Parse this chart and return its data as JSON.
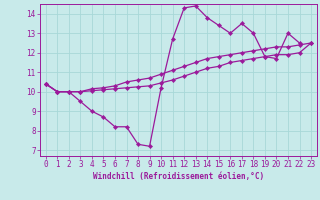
{
  "xlabel": "Windchill (Refroidissement éolien,°C)",
  "bg_color": "#c8eaea",
  "line_color": "#9b1a9b",
  "grid_color": "#a8d8d8",
  "xlim": [
    -0.5,
    23.5
  ],
  "ylim": [
    6.7,
    14.5
  ],
  "xticks": [
    0,
    1,
    2,
    3,
    4,
    5,
    6,
    7,
    8,
    9,
    10,
    11,
    12,
    13,
    14,
    15,
    16,
    17,
    18,
    19,
    20,
    21,
    22,
    23
  ],
  "yticks": [
    7,
    8,
    9,
    10,
    11,
    12,
    13,
    14
  ],
  "series": [
    [
      10.4,
      10.0,
      10.0,
      9.5,
      9.0,
      8.7,
      8.2,
      8.2,
      7.3,
      7.2,
      10.2,
      12.7,
      14.3,
      14.4,
      13.8,
      13.4,
      13.0,
      13.5,
      13.0,
      11.8,
      11.7,
      13.0,
      12.5,
      null
    ],
    [
      10.4,
      10.0,
      10.0,
      10.0,
      10.15,
      10.2,
      10.3,
      10.5,
      10.6,
      10.7,
      10.9,
      11.1,
      11.3,
      11.5,
      11.7,
      11.8,
      11.9,
      12.0,
      12.1,
      12.2,
      12.3,
      12.3,
      12.4,
      12.5
    ],
    [
      10.4,
      10.0,
      10.0,
      10.0,
      10.05,
      10.1,
      10.15,
      10.2,
      10.25,
      10.3,
      10.45,
      10.6,
      10.8,
      11.0,
      11.2,
      11.3,
      11.5,
      11.6,
      11.7,
      11.8,
      11.9,
      11.9,
      12.0,
      12.5
    ]
  ]
}
